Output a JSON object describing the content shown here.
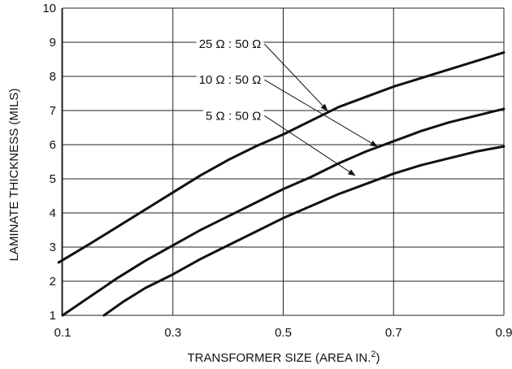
{
  "chart_data": {
    "type": "line",
    "xlabel": "TRANSFORMER SIZE (AREA IN.",
    "xlabel_sup": "2",
    "xlabel_end": ")",
    "ylabel": "LAMINATE THICKNESS (MILS)",
    "xlim": [
      0.1,
      0.9
    ],
    "ylim": [
      1,
      10
    ],
    "x_ticks": [
      0.1,
      0.3,
      0.5,
      0.7,
      0.9
    ],
    "x_tick_labels": [
      "0.1",
      "0.3",
      "0.5",
      "0.7",
      "0.9"
    ],
    "y_ticks": [
      1,
      2,
      3,
      4,
      5,
      6,
      7,
      8,
      9,
      10
    ],
    "y_tick_labels": [
      "1",
      "2",
      "3",
      "4",
      "5",
      "6",
      "7",
      "8",
      "9",
      "10"
    ],
    "grid": true,
    "series": [
      {
        "name": "25 Ω : 50 Ω",
        "x": [
          0.093,
          0.15,
          0.2,
          0.26,
          0.3,
          0.35,
          0.4,
          0.45,
          0.5,
          0.55,
          0.6,
          0.65,
          0.7,
          0.75,
          0.8,
          0.85,
          0.9
        ],
        "y": [
          2.55,
          3.1,
          3.6,
          4.2,
          4.6,
          5.1,
          5.55,
          5.95,
          6.3,
          6.7,
          7.1,
          7.4,
          7.7,
          7.95,
          8.2,
          8.45,
          8.7
        ]
      },
      {
        "name": "10 Ω : 50 Ω",
        "x": [
          0.1,
          0.15,
          0.2,
          0.25,
          0.3,
          0.35,
          0.4,
          0.45,
          0.5,
          0.55,
          0.6,
          0.65,
          0.7,
          0.75,
          0.8,
          0.85,
          0.9
        ],
        "y": [
          1.0,
          1.55,
          2.1,
          2.6,
          3.05,
          3.5,
          3.9,
          4.3,
          4.7,
          5.05,
          5.45,
          5.8,
          6.1,
          6.4,
          6.65,
          6.85,
          7.05
        ]
      },
      {
        "name": "5 Ω : 50 Ω",
        "x": [
          0.175,
          0.21,
          0.25,
          0.3,
          0.35,
          0.4,
          0.45,
          0.5,
          0.55,
          0.6,
          0.65,
          0.7,
          0.75,
          0.8,
          0.85,
          0.9
        ],
        "y": [
          1.0,
          1.4,
          1.8,
          2.2,
          2.65,
          3.05,
          3.45,
          3.85,
          4.2,
          4.55,
          4.85,
          5.15,
          5.4,
          5.6,
          5.8,
          5.95
        ]
      }
    ],
    "annotations": [
      {
        "text": "25 Ω : 50 Ω",
        "label_x": 0.46,
        "label_y": 8.95,
        "target_x": 0.58,
        "target_y": 7.0
      },
      {
        "text": "10 Ω : 50 Ω",
        "label_x": 0.46,
        "label_y": 7.9,
        "target_x": 0.67,
        "target_y": 5.95
      },
      {
        "text": "5 Ω : 50 Ω",
        "label_x": 0.46,
        "label_y": 6.85,
        "target_x": 0.63,
        "target_y": 5.1
      }
    ]
  }
}
